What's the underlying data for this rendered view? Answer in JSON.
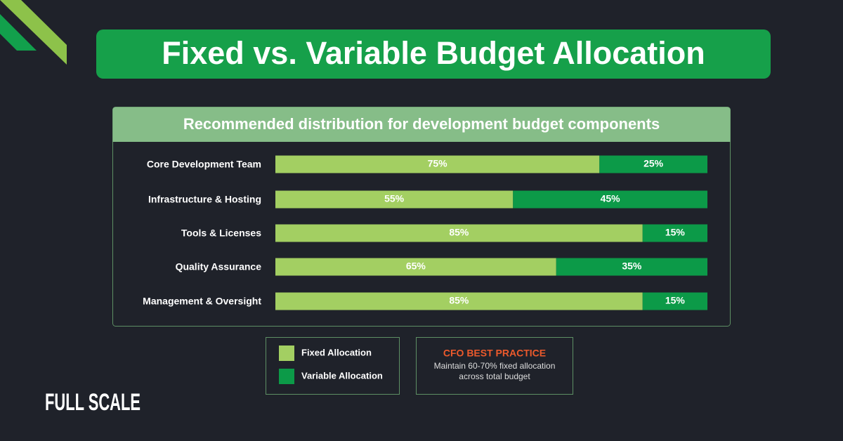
{
  "chart_data": {
    "type": "bar",
    "orientation": "horizontal",
    "stacked": true,
    "title": "Fixed vs. Variable Budget Allocation",
    "subtitle": "Recommended distribution for development budget components",
    "categories": [
      "Core Development Team",
      "Infrastructure & Hosting",
      "Tools & Licenses",
      "Quality Assurance",
      "Management & Oversight"
    ],
    "series": [
      {
        "name": "Fixed Allocation",
        "color": "#a3cf62",
        "values": [
          75,
          55,
          85,
          65,
          85
        ],
        "value_labels": [
          "75%",
          "55%",
          "85%",
          "65%",
          "85%"
        ]
      },
      {
        "name": "Variable Allocation",
        "color": "#0c9a48",
        "values": [
          25,
          45,
          15,
          35,
          15
        ],
        "value_labels": [
          "25%",
          "45%",
          "15%",
          "35%",
          "15%"
        ]
      }
    ],
    "annotation": {
      "title": "CFO BEST PRACTICE",
      "lines": [
        "Maintain 60-70% fixed allocation",
        "across total budget"
      ]
    }
  },
  "brand": "FULL SCALE"
}
